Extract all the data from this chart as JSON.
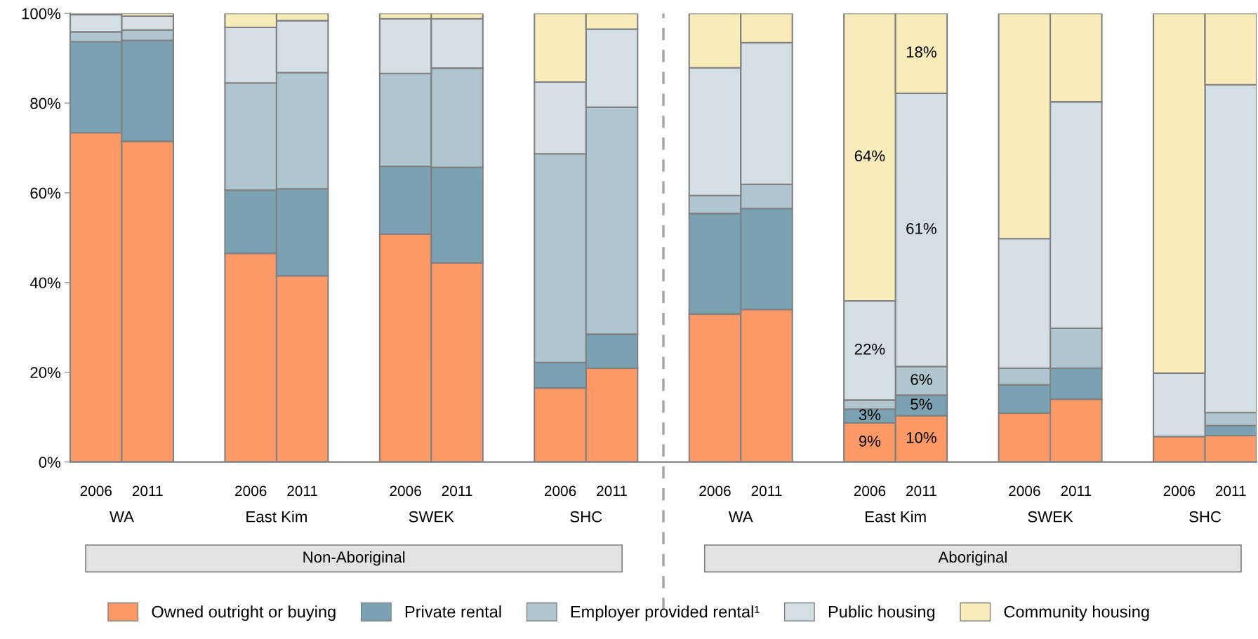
{
  "chart_data": {
    "type": "bar",
    "stacked": true,
    "categories": [
      "2006",
      "2011",
      null,
      "2006",
      "2011",
      null,
      "2006",
      "2011",
      null,
      "2006",
      "2011",
      null,
      "2006",
      "2011",
      null,
      "2006",
      "2011",
      null,
      "2006",
      "2011",
      null,
      "2006",
      "2011"
    ],
    "series": [
      {
        "name": "Owned outright or buying",
        "color": "#fd9966",
        "values": [
          73.4,
          71.5,
          null,
          46.5,
          41.5,
          null,
          50.8,
          44.4,
          null,
          16.5,
          20.9,
          null,
          33.0,
          34.0,
          null,
          8.7,
          10.3,
          null,
          10.9,
          14.0,
          null,
          5.7,
          5.9
        ],
        "value_labels": [
          null,
          null,
          null,
          null,
          null,
          null,
          null,
          null,
          null,
          null,
          null,
          null,
          null,
          null,
          null,
          "9%",
          "10%",
          null,
          null,
          null,
          null,
          null,
          null
        ]
      },
      {
        "name": "Private rental",
        "color": "#7aa2b3",
        "values": [
          20.3,
          22.5,
          null,
          14.1,
          19.4,
          null,
          15.1,
          21.3,
          null,
          5.7,
          7.6,
          null,
          22.4,
          22.5,
          null,
          3.1,
          4.6,
          null,
          6.3,
          6.9,
          null,
          0,
          2.2
        ],
        "value_labels": [
          null,
          null,
          null,
          null,
          null,
          null,
          null,
          null,
          null,
          null,
          null,
          null,
          null,
          null,
          null,
          "3%",
          "5%",
          null,
          null,
          null,
          null,
          null,
          null
        ]
      },
      {
        "name": "Employer provided rental¹",
        "color": "#afc5cf",
        "values": [
          2.2,
          2.3,
          null,
          23.9,
          25.9,
          null,
          20.7,
          22.1,
          null,
          46.5,
          50.6,
          null,
          4.0,
          5.4,
          null,
          2.0,
          6.4,
          null,
          3.7,
          8.9,
          null,
          0,
          2.9
        ],
        "value_labels": [
          null,
          null,
          null,
          null,
          null,
          null,
          null,
          null,
          null,
          null,
          null,
          null,
          null,
          null,
          null,
          null,
          "6%",
          null,
          null,
          null,
          null,
          null,
          null
        ]
      },
      {
        "name": "Public housing",
        "color": "#d3dfe5",
        "values": [
          3.8,
          3.1,
          null,
          12.4,
          11.6,
          null,
          12.2,
          11.0,
          null,
          16.0,
          17.4,
          null,
          28.5,
          31.6,
          null,
          22.1,
          60.9,
          null,
          28.9,
          50.5,
          null,
          14.1,
          73.1
        ],
        "value_labels": [
          null,
          null,
          null,
          null,
          null,
          null,
          null,
          null,
          null,
          null,
          null,
          null,
          null,
          null,
          null,
          "22%",
          "61%",
          null,
          null,
          null,
          null,
          null,
          null
        ]
      },
      {
        "name": "Community housing",
        "color": "#f8ecba",
        "values": [
          0.3,
          0.6,
          null,
          3.1,
          1.6,
          null,
          1.2,
          1.2,
          null,
          15.3,
          3.5,
          null,
          12.1,
          6.5,
          null,
          64.1,
          17.8,
          null,
          50.2,
          19.7,
          null,
          80.2,
          15.9
        ],
        "value_labels": [
          null,
          null,
          null,
          null,
          null,
          null,
          null,
          null,
          null,
          null,
          null,
          null,
          null,
          null,
          null,
          "64%",
          "18%",
          null,
          null,
          null,
          null,
          null,
          null
        ]
      }
    ],
    "ylim": [
      0,
      100
    ],
    "yticks": [
      {
        "value": 0,
        "label": "0%"
      },
      {
        "value": 20,
        "label": "20%"
      },
      {
        "value": 40,
        "label": "40%"
      },
      {
        "value": 60,
        "label": "60%"
      },
      {
        "value": 80,
        "label": "80%"
      },
      {
        "value": 100,
        "label": "100%"
      }
    ],
    "annotations": [
      "WA",
      "East Kim",
      "SWEK",
      "SHC",
      "WA",
      "East Kim",
      "SWEK",
      "SHC",
      "Non-Aboriginal",
      "Aboriginal"
    ],
    "legend": "bottom"
  }
}
